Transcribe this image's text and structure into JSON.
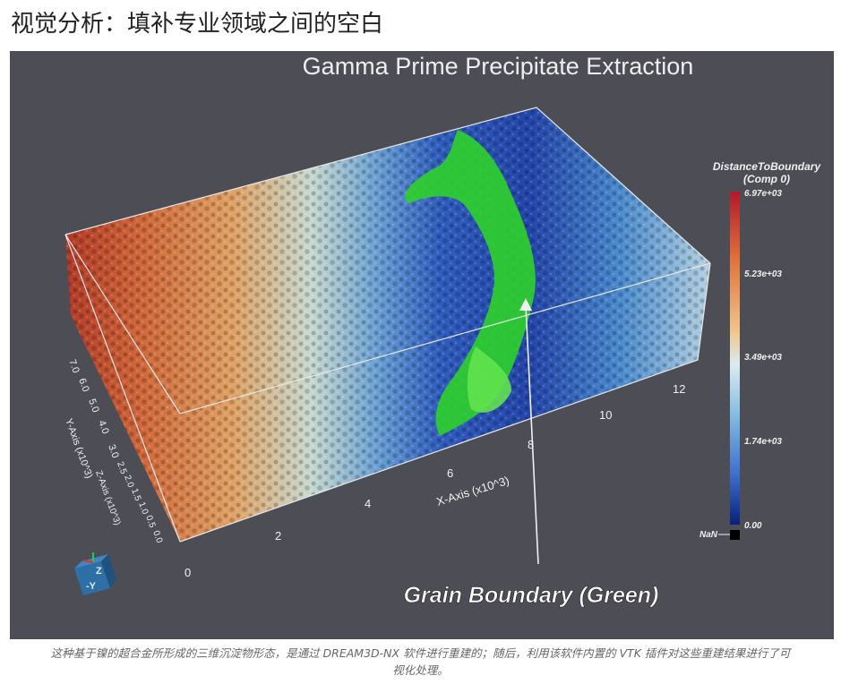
{
  "page": {
    "heading": "视觉分析：填补专业领域之间的空白",
    "caption_line1": "这种基于镍的超合金所形成的三维沉淀物形态，是通过 DREAM3D-NX 软件进行重建的；随后，利用该软件内置的 VTK 插件对这些重建结果进行了可",
    "caption_line2": "视化处理。"
  },
  "figure": {
    "title": "Gamma Prime Precipitate Extraction",
    "annotation": "Grain Boundary (Green)",
    "x_axis": {
      "label": "X-Axis (x10^3)",
      "ticks": [
        "0",
        "2",
        "4",
        "6",
        "8",
        "10",
        "12"
      ]
    },
    "y_axis": {
      "label": "Y-Axis (x10^3)",
      "ticks": [
        "7.0",
        "6.0",
        "5.0",
        "4.0",
        "3.0"
      ]
    },
    "z_axis": {
      "label": "Z-Axis (x10^3)",
      "ticks": [
        "2.5",
        "2.0",
        "1.5",
        "1.0",
        "0.5",
        "0.0"
      ]
    },
    "colorbar": {
      "title_line1": "DistanceToBoundary",
      "title_line2": "(Comp 0)",
      "labels": [
        "6.97e+03",
        "5.23e+03",
        "3.49e+03",
        "1.74e+03",
        "0.00"
      ],
      "nan_label": "NaN",
      "stops": [
        "#b2182b",
        "#e0703a",
        "#f2c58a",
        "#d9ecf0",
        "#7fb8e0",
        "#3b6fcf",
        "#0b1f7a"
      ]
    },
    "orientation_cube": {
      "face_label": "-Y",
      "axis_label": "Z"
    },
    "colors": {
      "background": "#4d4d55",
      "grain_boundary": "#2fd12a"
    }
  }
}
